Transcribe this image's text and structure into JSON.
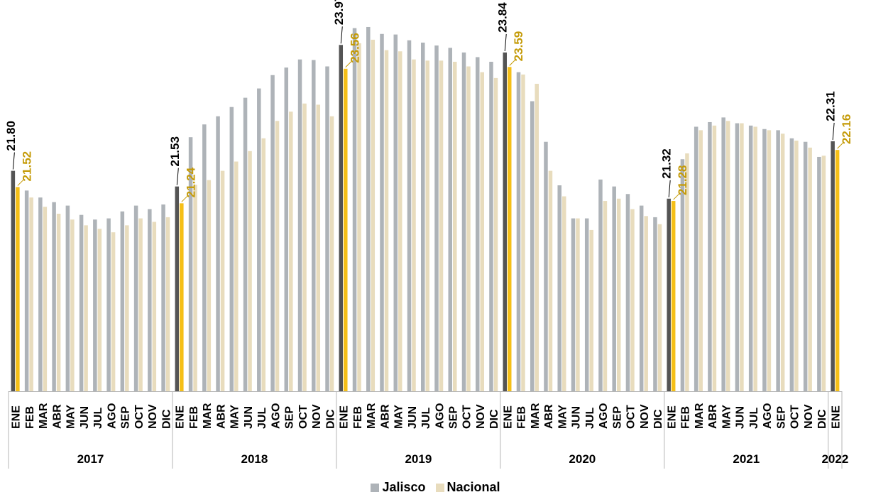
{
  "chart_data": {
    "type": "bar",
    "ylim": [
      18.0,
      24.5
    ],
    "grid": false,
    "legend_position": "bottom-center",
    "groups": [
      {
        "label": "2017",
        "months": [
          "ENE",
          "FEB",
          "MAR",
          "ABR",
          "MAY",
          "JUN",
          "JUL",
          "AGO",
          "SEP",
          "OCT",
          "NOV",
          "DIC"
        ]
      },
      {
        "label": "2018",
        "months": [
          "ENE",
          "FEB",
          "MAR",
          "ABR",
          "MAY",
          "JUN",
          "JUL",
          "AGO",
          "SEP",
          "OCT",
          "NOV",
          "DIC"
        ]
      },
      {
        "label": "2019",
        "months": [
          "ENE",
          "FEB",
          "MAR",
          "ABR",
          "MAY",
          "JUN",
          "JUL",
          "AGO",
          "SEP",
          "OCT",
          "NOV",
          "DIC"
        ]
      },
      {
        "label": "2020",
        "months": [
          "ENE",
          "FEB",
          "MAR",
          "ABR",
          "MAY",
          "JUN",
          "JUL",
          "AGO",
          "SEP",
          "OCT",
          "NOV",
          "DIC"
        ]
      },
      {
        "label": "2021",
        "months": [
          "ENE",
          "FEB",
          "MAR",
          "ABR",
          "MAY",
          "JUN",
          "JUL",
          "AGO",
          "SEP",
          "OCT",
          "NOV",
          "DIC"
        ]
      },
      {
        "label": "2022",
        "months": [
          "ENE"
        ]
      }
    ],
    "series": [
      {
        "name": "Jalisco",
        "color": "#aeb3b8",
        "highlight_color": "#545454",
        "values": [
          21.8,
          21.46,
          21.34,
          21.26,
          21.2,
          21.04,
          20.96,
          20.98,
          21.1,
          21.2,
          21.14,
          21.22,
          21.53,
          22.38,
          22.6,
          22.74,
          22.9,
          23.06,
          23.22,
          23.45,
          23.58,
          23.72,
          23.71,
          23.6,
          23.97,
          24.26,
          24.28,
          24.16,
          24.15,
          24.05,
          24.01,
          23.96,
          23.92,
          23.84,
          23.76,
          23.68,
          23.84,
          23.5,
          23.0,
          22.3,
          21.55,
          20.98,
          20.98,
          21.65,
          21.53,
          21.4,
          21.2,
          21.0,
          21.32,
          22.0,
          22.56,
          22.64,
          22.72,
          22.62,
          22.58,
          22.52,
          22.5,
          22.36,
          22.3,
          22.04,
          22.31
        ],
        "labels": {
          "0": "21.80",
          "12": "21.53",
          "24": "23.97",
          "36": "23.84",
          "48": "21.32",
          "60": "22.31"
        }
      },
      {
        "name": "Nacional",
        "color": "#e8dcbd",
        "highlight_color": "#f5bf17",
        "values": [
          21.52,
          21.34,
          21.18,
          21.06,
          20.96,
          20.86,
          20.8,
          20.74,
          20.86,
          20.98,
          20.92,
          21.0,
          21.24,
          21.56,
          21.64,
          21.8,
          21.96,
          22.14,
          22.36,
          22.66,
          22.82,
          22.96,
          22.94,
          22.74,
          23.56,
          24.0,
          24.06,
          23.88,
          23.86,
          23.72,
          23.7,
          23.7,
          23.68,
          23.6,
          23.5,
          23.4,
          23.59,
          23.46,
          23.3,
          21.8,
          21.36,
          20.98,
          20.78,
          21.28,
          21.32,
          21.14,
          21.02,
          20.88,
          21.28,
          22.1,
          22.5,
          22.58,
          22.66,
          22.62,
          22.56,
          22.5,
          22.44,
          22.32,
          22.2,
          22.06,
          22.16
        ],
        "labels": {
          "0": "21.52",
          "12": "21.24",
          "24": "23.56",
          "36": "23.59",
          "48": "21.28",
          "60": "22.16"
        }
      }
    ]
  }
}
